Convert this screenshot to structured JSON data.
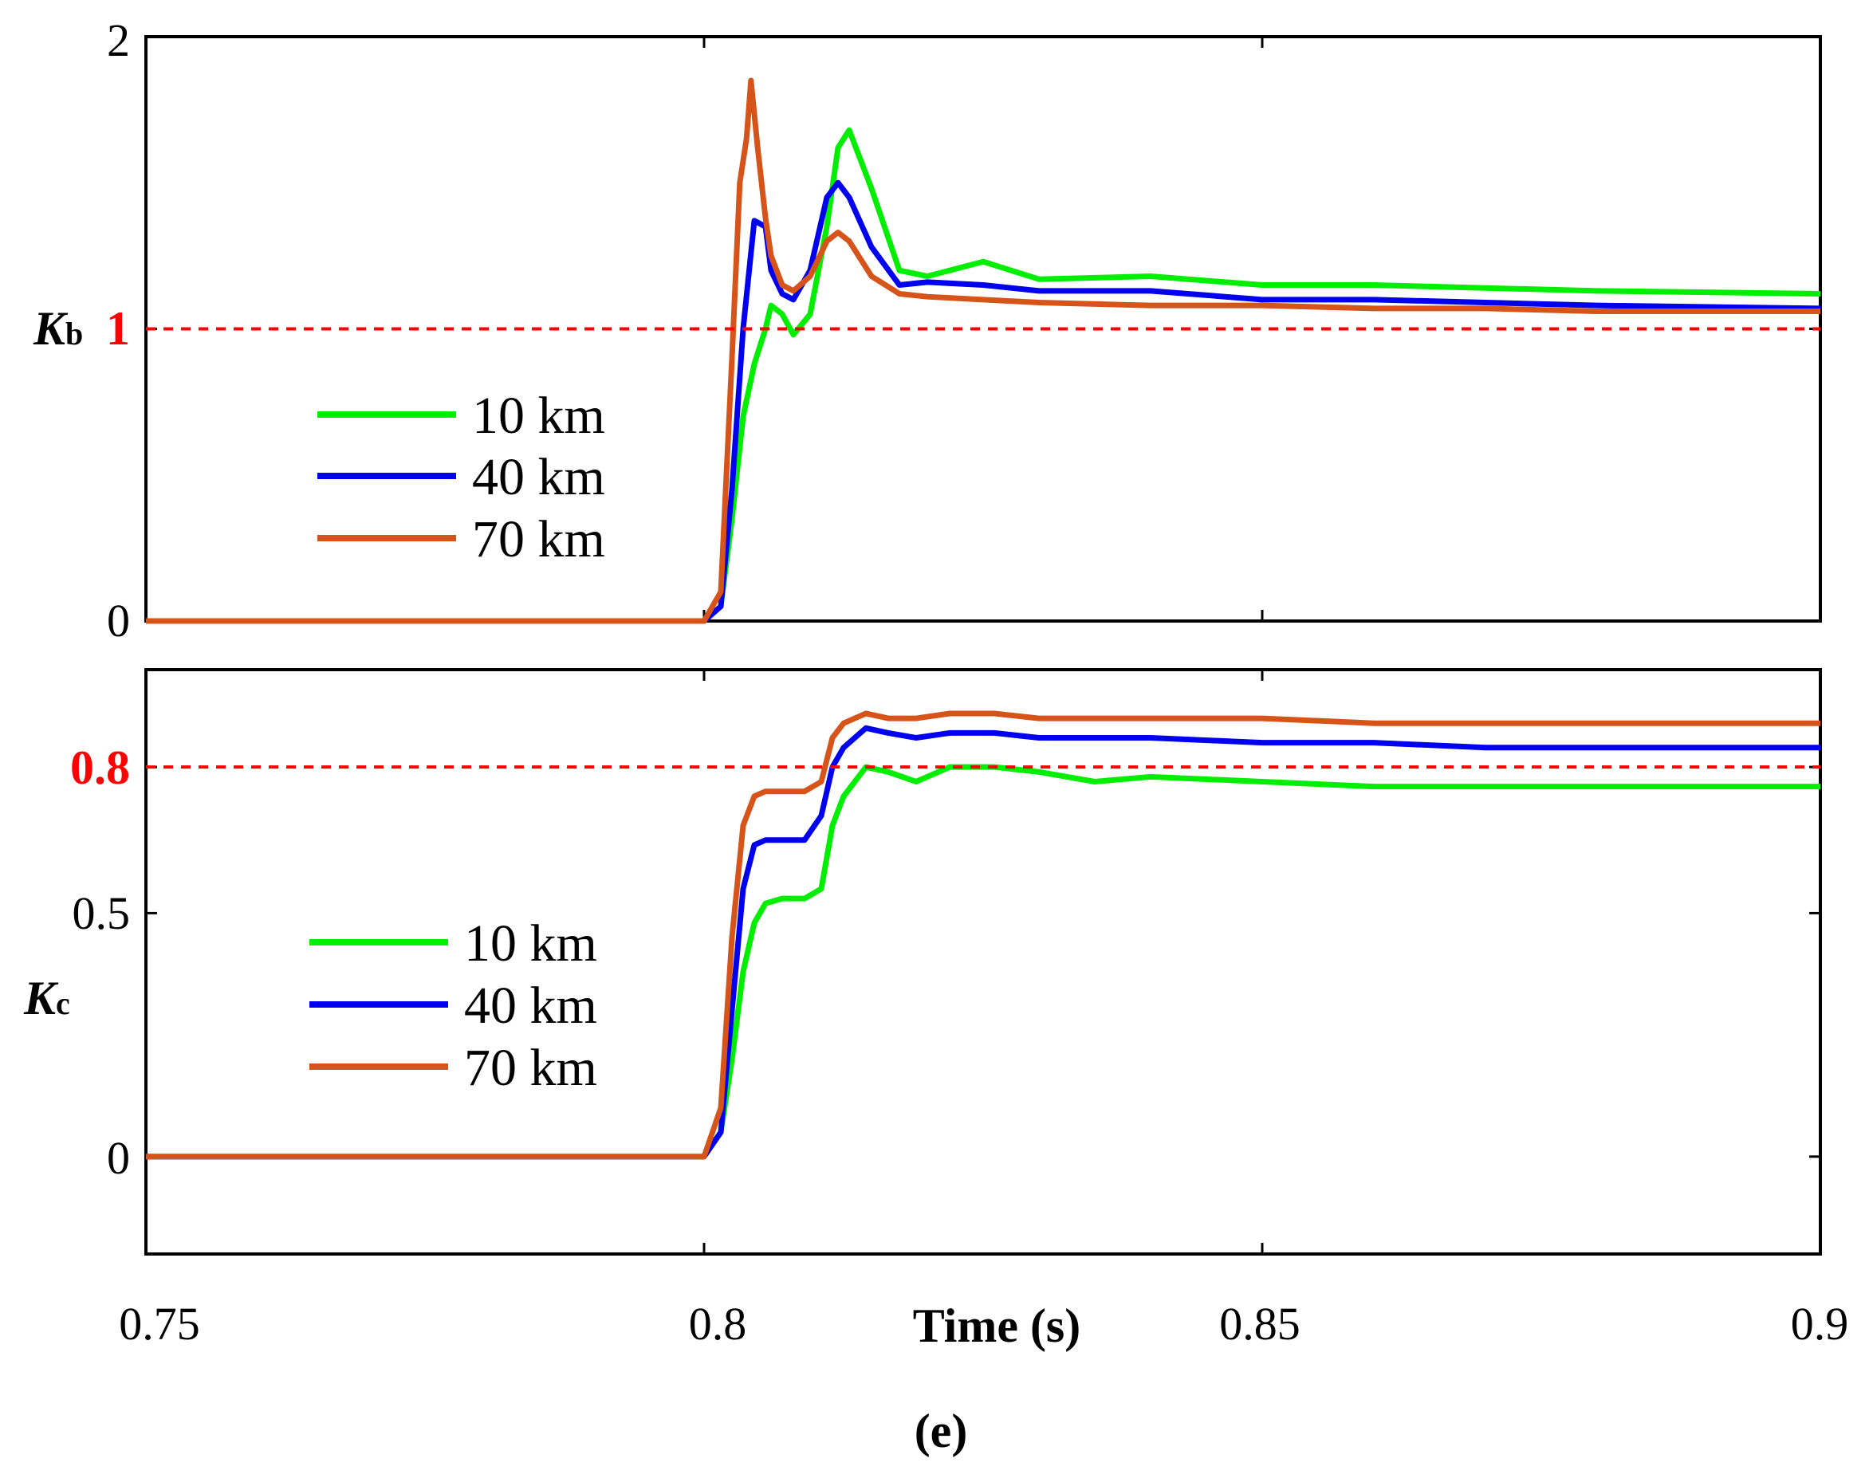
{
  "chart_data": [
    {
      "type": "line",
      "panel": "top",
      "ylabel_main": "K",
      "ylabel_sub": "b",
      "xlim": [
        0.75,
        0.9
      ],
      "ylim": [
        0,
        2
      ],
      "y_ticks": [
        "0",
        "2"
      ],
      "reference_line": {
        "value": 1,
        "label": "1",
        "color": "#ff0000"
      },
      "legend": {
        "position": "left-middle"
      },
      "series": [
        {
          "name": "10 km",
          "color": "#00ee00",
          "x": [
            0.75,
            0.8,
            0.8015,
            0.8025,
            0.8035,
            0.8045,
            0.8055,
            0.806,
            0.807,
            0.808,
            0.8095,
            0.811,
            0.812,
            0.813,
            0.815,
            0.8175,
            0.82,
            0.825,
            0.83,
            0.84,
            0.85,
            0.86,
            0.87,
            0.88,
            0.9
          ],
          "y": [
            0,
            0,
            0.05,
            0.35,
            0.7,
            0.88,
            1.0,
            1.08,
            1.05,
            0.98,
            1.05,
            1.35,
            1.62,
            1.68,
            1.48,
            1.2,
            1.18,
            1.23,
            1.17,
            1.18,
            1.15,
            1.15,
            1.14,
            1.13,
            1.12
          ]
        },
        {
          "name": "40 km",
          "color": "#0000ee",
          "x": [
            0.75,
            0.8,
            0.8015,
            0.8025,
            0.8035,
            0.8045,
            0.8055,
            0.806,
            0.807,
            0.808,
            0.8095,
            0.811,
            0.812,
            0.813,
            0.815,
            0.8175,
            0.82,
            0.825,
            0.83,
            0.84,
            0.85,
            0.86,
            0.87,
            0.88,
            0.9
          ],
          "y": [
            0,
            0,
            0.05,
            0.45,
            1.0,
            1.37,
            1.35,
            1.2,
            1.12,
            1.1,
            1.2,
            1.45,
            1.5,
            1.45,
            1.28,
            1.15,
            1.16,
            1.15,
            1.13,
            1.13,
            1.1,
            1.1,
            1.09,
            1.08,
            1.07
          ]
        },
        {
          "name": "70 km",
          "color": "#d6541a",
          "x": [
            0.75,
            0.8,
            0.8015,
            0.8025,
            0.8032,
            0.8038,
            0.8042,
            0.8048,
            0.8055,
            0.806,
            0.807,
            0.808,
            0.8095,
            0.811,
            0.812,
            0.813,
            0.815,
            0.8175,
            0.82,
            0.825,
            0.83,
            0.84,
            0.85,
            0.86,
            0.87,
            0.88,
            0.9
          ],
          "y": [
            0,
            0,
            0.1,
            0.9,
            1.5,
            1.65,
            1.85,
            1.62,
            1.38,
            1.25,
            1.15,
            1.13,
            1.18,
            1.3,
            1.33,
            1.3,
            1.18,
            1.12,
            1.11,
            1.1,
            1.09,
            1.08,
            1.08,
            1.07,
            1.07,
            1.06,
            1.06
          ]
        }
      ]
    },
    {
      "type": "line",
      "panel": "bottom",
      "ylabel_main": "K",
      "ylabel_sub": "c",
      "xlabel": "Time (s)",
      "xlim": [
        0.75,
        0.9
      ],
      "ylim": [
        -0.2,
        1.0
      ],
      "y_ticks": [
        "0",
        "0.5"
      ],
      "x_ticks": [
        "0.75",
        "0.8",
        "0.85",
        "0.9"
      ],
      "reference_line": {
        "value": 0.8,
        "label": "0.8",
        "color": "#ff0000"
      },
      "legend": {
        "position": "left-middle"
      },
      "series": [
        {
          "name": "10 km",
          "color": "#00ee00",
          "x": [
            0.75,
            0.8,
            0.8015,
            0.8025,
            0.8035,
            0.8045,
            0.8055,
            0.807,
            0.809,
            0.8105,
            0.8115,
            0.8125,
            0.8145,
            0.8165,
            0.819,
            0.822,
            0.826,
            0.83,
            0.835,
            0.84,
            0.85,
            0.86,
            0.87,
            0.88,
            0.9
          ],
          "y": [
            0,
            0,
            0.05,
            0.2,
            0.38,
            0.48,
            0.52,
            0.53,
            0.53,
            0.55,
            0.68,
            0.74,
            0.8,
            0.79,
            0.77,
            0.8,
            0.8,
            0.79,
            0.77,
            0.78,
            0.77,
            0.76,
            0.76,
            0.76,
            0.76
          ]
        },
        {
          "name": "40 km",
          "color": "#0000ee",
          "x": [
            0.75,
            0.8,
            0.8015,
            0.8025,
            0.8035,
            0.8045,
            0.8055,
            0.807,
            0.809,
            0.8105,
            0.8115,
            0.8125,
            0.8145,
            0.8165,
            0.819,
            0.822,
            0.826,
            0.83,
            0.835,
            0.84,
            0.85,
            0.86,
            0.87,
            0.88,
            0.9
          ],
          "y": [
            0,
            0,
            0.05,
            0.3,
            0.55,
            0.64,
            0.65,
            0.65,
            0.65,
            0.7,
            0.8,
            0.84,
            0.88,
            0.87,
            0.86,
            0.87,
            0.87,
            0.86,
            0.86,
            0.86,
            0.85,
            0.85,
            0.84,
            0.84,
            0.84
          ]
        },
        {
          "name": "70 km",
          "color": "#d6541a",
          "x": [
            0.75,
            0.8,
            0.8015,
            0.8025,
            0.8035,
            0.8045,
            0.8055,
            0.807,
            0.809,
            0.8105,
            0.8115,
            0.8125,
            0.8145,
            0.8165,
            0.819,
            0.822,
            0.826,
            0.83,
            0.835,
            0.84,
            0.85,
            0.86,
            0.87,
            0.88,
            0.9
          ],
          "y": [
            0,
            0,
            0.1,
            0.45,
            0.68,
            0.74,
            0.75,
            0.75,
            0.75,
            0.77,
            0.86,
            0.89,
            0.91,
            0.9,
            0.9,
            0.91,
            0.91,
            0.9,
            0.9,
            0.9,
            0.9,
            0.89,
            0.89,
            0.89,
            0.89
          ]
        }
      ]
    }
  ],
  "caption": "(e)"
}
